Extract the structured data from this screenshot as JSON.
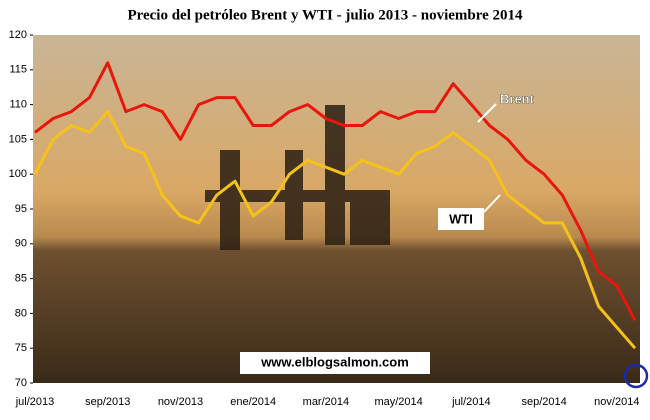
{
  "chart_data": {
    "type": "line",
    "title": "Precio del petróleo Brent y WTI - julio 2013 - noviembre 2014",
    "categories": [
      "jul/2013",
      null,
      null,
      null,
      "sep/2013",
      null,
      null,
      null,
      "nov/2013",
      null,
      null,
      null,
      "ene/2014",
      null,
      null,
      null,
      "mar/2014",
      null,
      null,
      null,
      "may/2014",
      null,
      null,
      null,
      "jul/2014",
      null,
      null,
      null,
      "sep/2014",
      null,
      null,
      null,
      "nov/2014",
      null
    ],
    "series": [
      {
        "name": "Brent",
        "color": "#e8160c",
        "values": [
          106,
          108,
          109,
          111,
          116,
          109,
          110,
          109,
          105,
          110,
          111,
          111,
          107,
          107,
          109,
          110,
          108,
          107,
          107,
          109,
          108,
          109,
          109,
          113,
          110,
          107,
          105,
          102,
          100,
          97,
          92,
          86,
          84,
          79
        ]
      },
      {
        "name": "WTI",
        "color": "#f5c21a",
        "values": [
          100,
          105,
          107,
          106,
          109,
          104,
          103,
          97,
          94,
          93,
          97,
          99,
          94,
          96,
          100,
          102,
          101,
          100,
          102,
          101,
          100,
          103,
          104,
          106,
          104,
          102,
          97,
          95,
          93,
          93,
          88,
          81,
          78,
          75
        ]
      }
    ],
    "ylim": [
      70,
      120
    ],
    "yticks": [
      70,
      75,
      80,
      85,
      90,
      95,
      100,
      105,
      110,
      115,
      120
    ],
    "source": "www.elblogsalmon.com"
  }
}
